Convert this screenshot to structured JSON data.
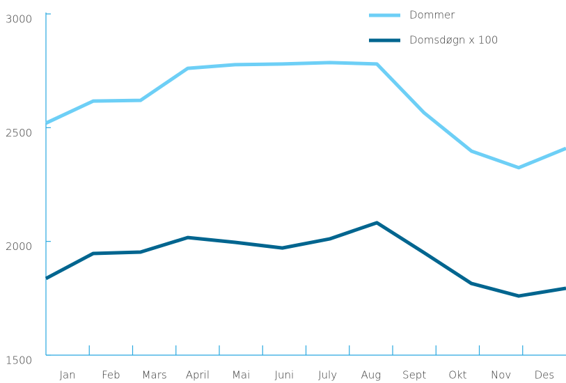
{
  "chart_data": {
    "type": "line",
    "categories": [
      "Jan",
      "Feb",
      "Mars",
      "April",
      "Mai",
      "Juni",
      "July",
      "Aug",
      "Sept",
      "Okt",
      "Nov",
      "Des"
    ],
    "series": [
      {
        "name": "Dommer",
        "color": "#6dcff6",
        "values": [
          2520,
          2617,
          2620,
          2761,
          2777,
          2780,
          2786,
          2780,
          2565,
          2397,
          2324,
          2409
        ]
      },
      {
        "name": "Domsdøgn x 100",
        "color": "#00658f",
        "values": [
          1837,
          1947,
          1953,
          2017,
          1996,
          1971,
          2011,
          2082,
          1950,
          1815,
          1760,
          1794
        ]
      }
    ],
    "ylim": [
      1500,
      3000
    ],
    "yticks": [
      1500,
      2000,
      2500,
      3000
    ],
    "legend": "top-right"
  }
}
